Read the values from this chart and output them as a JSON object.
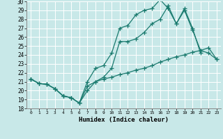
{
  "xlabel": "Humidex (Indice chaleur)",
  "bg_color": "#c8e8e8",
  "line_color": "#1a7a6e",
  "grid_color": "#ffffff",
  "xlim_min": -0.5,
  "xlim_max": 23.5,
  "ylim_min": 18,
  "ylim_max": 30,
  "xticks": [
    0,
    1,
    2,
    3,
    4,
    5,
    6,
    7,
    8,
    9,
    10,
    11,
    12,
    13,
    14,
    15,
    16,
    17,
    18,
    19,
    20,
    21,
    22,
    23
  ],
  "yticks": [
    18,
    19,
    20,
    21,
    22,
    23,
    24,
    25,
    26,
    27,
    28,
    29,
    30
  ],
  "line1_x": [
    0,
    1,
    2,
    3,
    4,
    5,
    6,
    7,
    8,
    9,
    10,
    11,
    12,
    13,
    14,
    15,
    16,
    17,
    18,
    19,
    20,
    21
  ],
  "line1_y": [
    21.3,
    20.8,
    20.7,
    20.2,
    19.4,
    19.2,
    18.6,
    21.0,
    22.5,
    22.8,
    24.2,
    27.0,
    27.3,
    28.5,
    29.0,
    29.2,
    30.2,
    29.2,
    27.5,
    29.2,
    27.0,
    24.2
  ],
  "line2_x": [
    0,
    1,
    2,
    3,
    4,
    5,
    6,
    7,
    8,
    9,
    10,
    11,
    12,
    13,
    14,
    15,
    16,
    17,
    18,
    19,
    20,
    21,
    22,
    23
  ],
  "line2_y": [
    21.3,
    20.8,
    20.7,
    20.2,
    19.4,
    19.2,
    18.6,
    20.0,
    21.0,
    21.5,
    22.5,
    25.5,
    25.5,
    25.8,
    26.5,
    27.5,
    28.0,
    29.5,
    27.5,
    29.0,
    26.8,
    24.5,
    24.2,
    23.5
  ],
  "line3_x": [
    0,
    1,
    2,
    3,
    4,
    5,
    6,
    7,
    8,
    9,
    10,
    11,
    12,
    13,
    14,
    15,
    16,
    17,
    18,
    19,
    20,
    21,
    22,
    23
  ],
  "line3_y": [
    21.3,
    20.8,
    20.7,
    20.2,
    19.4,
    19.2,
    18.6,
    20.5,
    21.0,
    21.3,
    21.5,
    21.8,
    22.0,
    22.3,
    22.5,
    22.8,
    23.2,
    23.5,
    23.8,
    24.0,
    24.3,
    24.5,
    24.8,
    23.5
  ]
}
